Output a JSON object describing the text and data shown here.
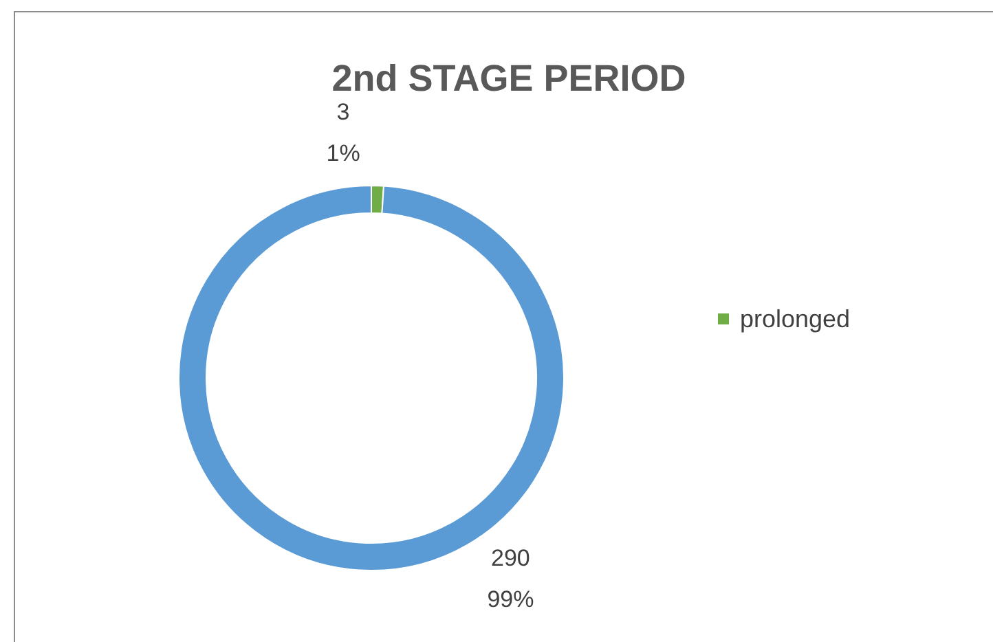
{
  "chart_data": {
    "type": "donut",
    "title": "2nd STAGE PERIOD",
    "categories": [
      "prolonged",
      null
    ],
    "values": [
      3,
      290
    ],
    "colors": [
      "#70ad47",
      "#5b9bd5"
    ],
    "value_labels": [
      "3\n1%",
      "290\n99%"
    ],
    "legend": "right"
  }
}
